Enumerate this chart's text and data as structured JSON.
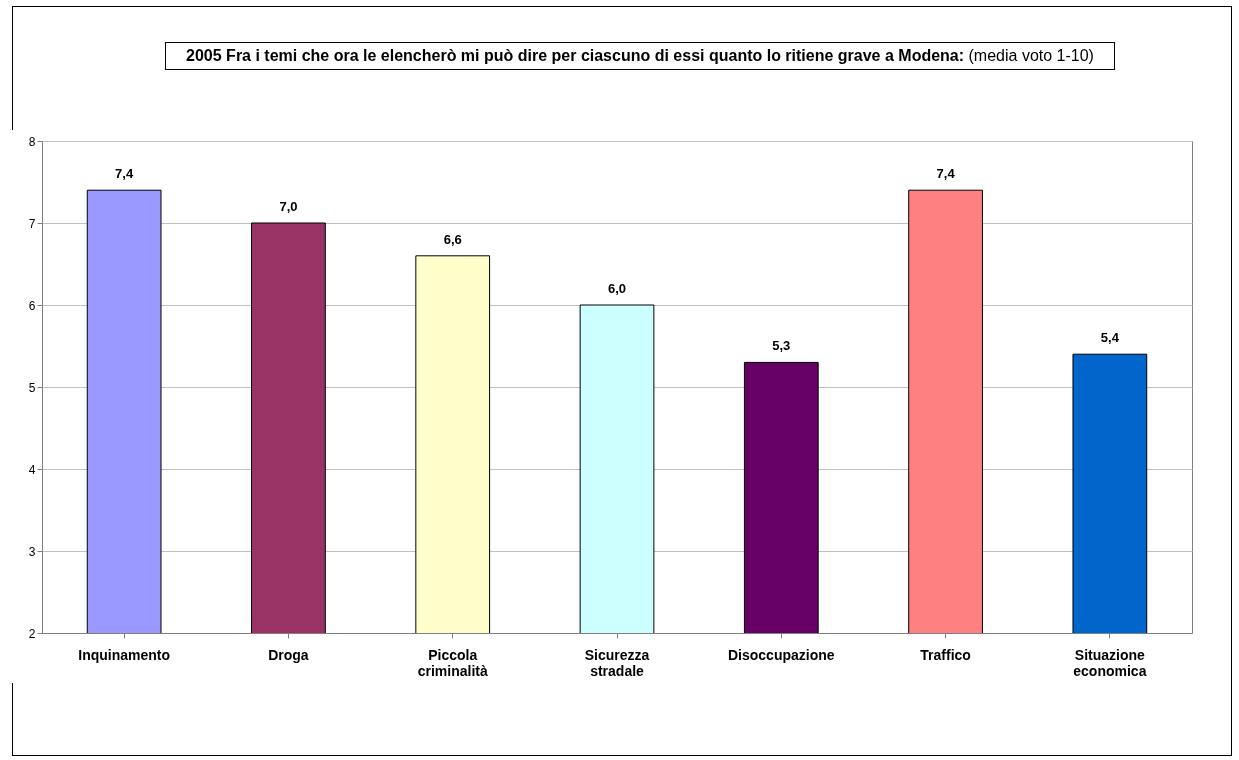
{
  "chart_data": {
    "type": "bar",
    "title": "2005 Fra i temi che ora le elencherò mi può dire per ciascuno di essi quanto lo ritiene grave a Modena:",
    "subtitle": "(media voto 1-10)",
    "categories": [
      "Inquinamento",
      "Droga",
      "Piccola criminalità",
      "Sicurezza stradale",
      "Disoccupazione",
      "Traffico",
      "Situazione economica"
    ],
    "values": [
      7.4,
      7.0,
      6.6,
      6.0,
      5.3,
      7.4,
      5.4
    ],
    "colors": [
      "#9999ff",
      "#993366",
      "#ffffcc",
      "#ccffff",
      "#660066",
      "#ff8080",
      "#0066cc"
    ],
    "value_labels": [
      "7,4",
      "7,0",
      "6,6",
      "6,0",
      "5,3",
      "7,4",
      "5,4"
    ],
    "ylim": [
      2,
      8
    ],
    "yticks": [
      2,
      3,
      4,
      5,
      6,
      7,
      8
    ],
    "grid": "y",
    "legend": false
  }
}
